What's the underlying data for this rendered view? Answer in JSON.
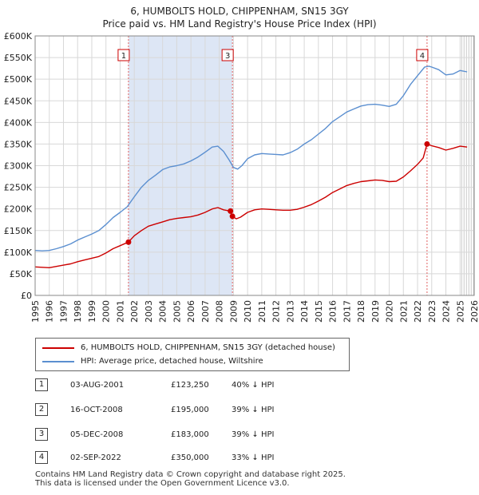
{
  "title_line1": "6, HUMBOLTS HOLD, CHIPPENHAM, SN15 3GY",
  "title_line2": "Price paid vs. HM Land Registry's House Price Index (HPI)",
  "colors": {
    "property": "#cc0000",
    "hpi": "#5b8fd0",
    "shade": "#dde6f5",
    "grid": "#d8d8d8",
    "marker_line": "#e06060"
  },
  "chart_data": {
    "type": "line",
    "xlim": [
      1995,
      2026
    ],
    "ylim": [
      0,
      600000
    ],
    "y_ticks": [
      0,
      50000,
      100000,
      150000,
      200000,
      250000,
      300000,
      350000,
      400000,
      450000,
      500000,
      550000,
      600000
    ],
    "y_tick_labels": [
      "£0",
      "£50K",
      "£100K",
      "£150K",
      "£200K",
      "£250K",
      "£300K",
      "£350K",
      "£400K",
      "£450K",
      "£500K",
      "£550K",
      "£600K"
    ],
    "x_ticks": [
      1995,
      1996,
      1997,
      1998,
      1999,
      2000,
      2001,
      2002,
      2003,
      2004,
      2005,
      2006,
      2007,
      2008,
      2009,
      2010,
      2011,
      2012,
      2013,
      2014,
      2015,
      2016,
      2017,
      2018,
      2019,
      2020,
      2021,
      2022,
      2023,
      2024,
      2025,
      2026
    ],
    "x_tick_labels": [
      "1995",
      "1996",
      "1997",
      "1998",
      "1999",
      "2000",
      "2001",
      "2002",
      "2003",
      "2004",
      "2005",
      "2006",
      "2007",
      "2008",
      "2009",
      "2010",
      "2011",
      "2012",
      "2013",
      "2014",
      "2015",
      "2016",
      "2017",
      "2018",
      "2019",
      "2020",
      "2021",
      "2022",
      "2023",
      "2024",
      "2025",
      "2026"
    ],
    "shaded_range": [
      2001.59,
      2008.93
    ],
    "future_from": 2025.0,
    "series": [
      {
        "name": "6, HUMBOLTS HOLD, CHIPPENHAM, SN15 3GY (detached house)",
        "color": "#cc0000",
        "x": [
          1995.0,
          1995.5,
          1996.0,
          1996.5,
          1997.0,
          1997.5,
          1998.0,
          1998.5,
          1999.0,
          1999.5,
          2000.0,
          2000.5,
          2001.0,
          2001.59,
          2002.0,
          2002.5,
          2003.0,
          2003.5,
          2004.0,
          2004.5,
          2005.0,
          2005.5,
          2006.0,
          2006.5,
          2007.0,
          2007.5,
          2007.9,
          2008.3,
          2008.79,
          2008.93,
          2009.2,
          2009.5,
          2010.0,
          2010.5,
          2011.0,
          2011.5,
          2012.0,
          2012.5,
          2013.0,
          2013.5,
          2014.0,
          2014.5,
          2015.0,
          2015.5,
          2016.0,
          2016.5,
          2017.0,
          2017.5,
          2018.0,
          2018.5,
          2019.0,
          2019.5,
          2020.0,
          2020.5,
          2021.0,
          2021.5,
          2022.0,
          2022.4,
          2022.67,
          2023.0,
          2023.5,
          2024.0,
          2024.5,
          2025.0,
          2025.5
        ],
        "values": [
          66000,
          65000,
          64000,
          67000,
          70000,
          73000,
          78000,
          82000,
          86000,
          90000,
          98000,
          108000,
          115000,
          123250,
          138000,
          150000,
          160000,
          165000,
          170000,
          175000,
          178000,
          180000,
          182000,
          186000,
          192000,
          200000,
          203000,
          198000,
          195000,
          183000,
          177000,
          181000,
          192000,
          198000,
          200000,
          199000,
          198000,
          197000,
          197000,
          199000,
          204000,
          210000,
          218000,
          227000,
          238000,
          246000,
          254000,
          259000,
          263000,
          265000,
          267000,
          266000,
          263000,
          264000,
          274000,
          288000,
          303000,
          318000,
          350000,
          346000,
          342000,
          336000,
          340000,
          345000,
          343000
        ]
      },
      {
        "name": "HPI: Average price, detached house, Wiltshire",
        "color": "#5b8fd0",
        "x": [
          1995.0,
          1995.5,
          1996.0,
          1996.5,
          1997.0,
          1997.5,
          1998.0,
          1998.5,
          1999.0,
          1999.5,
          2000.0,
          2000.5,
          2001.0,
          2001.5,
          2002.0,
          2002.5,
          2003.0,
          2003.5,
          2004.0,
          2004.5,
          2005.0,
          2005.5,
          2006.0,
          2006.5,
          2007.0,
          2007.5,
          2007.9,
          2008.3,
          2008.7,
          2009.0,
          2009.3,
          2009.6,
          2010.0,
          2010.5,
          2011.0,
          2011.5,
          2012.0,
          2012.5,
          2013.0,
          2013.5,
          2014.0,
          2014.5,
          2015.0,
          2015.5,
          2016.0,
          2016.5,
          2017.0,
          2017.5,
          2018.0,
          2018.5,
          2019.0,
          2019.5,
          2020.0,
          2020.5,
          2021.0,
          2021.5,
          2022.0,
          2022.5,
          2022.8,
          2023.0,
          2023.5,
          2024.0,
          2024.5,
          2025.0,
          2025.5
        ],
        "values": [
          104000,
          103000,
          104000,
          108000,
          113000,
          119000,
          128000,
          135000,
          142000,
          150000,
          164000,
          180000,
          192000,
          205000,
          228000,
          250000,
          266000,
          278000,
          291000,
          297000,
          300000,
          304000,
          311000,
          320000,
          331000,
          343000,
          345000,
          333000,
          313000,
          296000,
          292000,
          300000,
          316000,
          325000,
          328000,
          327000,
          326000,
          325000,
          330000,
          338000,
          350000,
          360000,
          373000,
          386000,
          402000,
          413000,
          424000,
          431000,
          438000,
          441000,
          442000,
          440000,
          437000,
          442000,
          462000,
          488000,
          508000,
          528000,
          530000,
          528000,
          522000,
          510000,
          512000,
          520000,
          517000
        ]
      }
    ],
    "transactions": [
      {
        "label": "1",
        "x": 2001.59,
        "price": 123250,
        "dot": true
      },
      {
        "label": "2",
        "x": 2008.79,
        "price": 195000,
        "dot": true
      },
      {
        "label": "3",
        "x": 2008.93,
        "price": 183000,
        "dot": true
      },
      {
        "label": "4",
        "x": 2022.67,
        "price": 350000,
        "dot": true
      }
    ],
    "marker_boxes": [
      "1",
      "3",
      "4"
    ]
  },
  "legend": {
    "property": "6, HUMBOLTS HOLD, CHIPPENHAM, SN15 3GY (detached house)",
    "hpi": "HPI: Average price, detached house, Wiltshire"
  },
  "table": [
    {
      "num": "1",
      "date": "03-AUG-2001",
      "price": "£123,250",
      "hpi": "40% ↓ HPI"
    },
    {
      "num": "2",
      "date": "16-OCT-2008",
      "price": "£195,000",
      "hpi": "39% ↓ HPI"
    },
    {
      "num": "3",
      "date": "05-DEC-2008",
      "price": "£183,000",
      "hpi": "39% ↓ HPI"
    },
    {
      "num": "4",
      "date": "02-SEP-2022",
      "price": "£350,000",
      "hpi": "33% ↓ HPI"
    }
  ],
  "footer_line1": "Contains HM Land Registry data © Crown copyright and database right 2025.",
  "footer_line2": "This data is licensed under the Open Government Licence v3.0."
}
